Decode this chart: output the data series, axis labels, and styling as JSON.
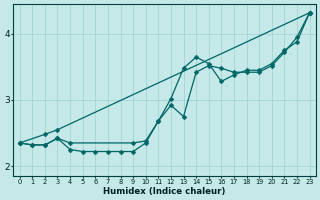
{
  "xlabel": "Humidex (Indice chaleur)",
  "bg_color": "#c5e8e8",
  "grid_color": "#9ecfcf",
  "line_color": "#006666",
  "xlim_min": -0.5,
  "xlim_max": 23.5,
  "ylim_min": 1.85,
  "ylim_max": 4.45,
  "xticks": [
    0,
    1,
    2,
    3,
    4,
    5,
    6,
    7,
    8,
    9,
    10,
    11,
    12,
    13,
    14,
    15,
    16,
    17,
    18,
    19,
    20,
    21,
    22,
    23
  ],
  "yticks": [
    2,
    3,
    4
  ],
  "line1_x": [
    0,
    2,
    3,
    23
  ],
  "line1_y": [
    2.35,
    2.48,
    2.55,
    4.32
  ],
  "line2_x": [
    0,
    1,
    2,
    3,
    4,
    9,
    10,
    11,
    12,
    13,
    14,
    15,
    16,
    17,
    18,
    19,
    20,
    21,
    22,
    23
  ],
  "line2_y": [
    2.35,
    2.32,
    2.32,
    2.42,
    2.35,
    2.35,
    2.38,
    2.68,
    3.02,
    3.48,
    3.65,
    3.55,
    3.28,
    3.38,
    3.45,
    3.45,
    3.55,
    3.75,
    3.88,
    4.32
  ],
  "line3_x": [
    0,
    1,
    2,
    3,
    4,
    5,
    6,
    7,
    8,
    9,
    10,
    11,
    12,
    13,
    14,
    15,
    16,
    17,
    18,
    19,
    20,
    21,
    22,
    23
  ],
  "line3_y": [
    2.35,
    2.32,
    2.32,
    2.42,
    2.25,
    2.22,
    2.22,
    2.22,
    2.22,
    2.22,
    2.35,
    2.68,
    2.92,
    2.75,
    3.42,
    3.52,
    3.48,
    3.42,
    3.42,
    3.42,
    3.52,
    3.72,
    3.95,
    4.32
  ]
}
